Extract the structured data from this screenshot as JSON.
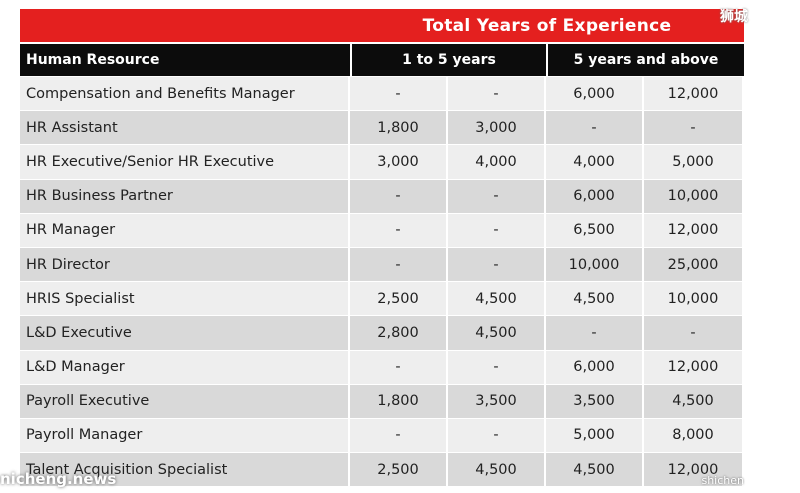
{
  "table": {
    "super_header": "Total Years of Experience",
    "header": {
      "resource": "Human Resource",
      "group1": "1 to 5 years",
      "group2": "5 years and above"
    },
    "rows": [
      {
        "name": "Compensation and Benefits Manager",
        "values": [
          "-",
          "-",
          "6,000",
          "12,000"
        ]
      },
      {
        "name": "HR Assistant",
        "values": [
          "1,800",
          "3,000",
          "-",
          "-"
        ]
      },
      {
        "name": "HR Executive/Senior HR Executive",
        "values": [
          "3,000",
          "4,000",
          "4,000",
          "5,000"
        ]
      },
      {
        "name": "HR Business Partner",
        "values": [
          "-",
          "-",
          "6,000",
          "10,000"
        ]
      },
      {
        "name": "HR Manager",
        "values": [
          "-",
          "-",
          "6,500",
          "12,000"
        ]
      },
      {
        "name": "HR Director",
        "values": [
          "-",
          "-",
          "10,000",
          "25,000"
        ]
      },
      {
        "name": "HRIS Specialist",
        "values": [
          "2,500",
          "4,500",
          "4,500",
          "10,000"
        ]
      },
      {
        "name": "L&D Executive",
        "values": [
          "2,800",
          "4,500",
          "-",
          "-"
        ]
      },
      {
        "name": "L&D Manager",
        "values": [
          "-",
          "-",
          "6,000",
          "12,000"
        ]
      },
      {
        "name": "Payroll Executive",
        "values": [
          "1,800",
          "3,500",
          "3,500",
          "4,500"
        ]
      },
      {
        "name": "Payroll Manager",
        "values": [
          "-",
          "-",
          "5,000",
          "8,000"
        ]
      },
      {
        "name": "Talent Acquisition Specialist",
        "values": [
          "2,500",
          "4,500",
          "4,500",
          "12,000"
        ]
      }
    ]
  },
  "watermarks": {
    "top_right": "狮城",
    "bottom_left": "nicheng.news",
    "bottom_right": "shichen"
  },
  "colors": {
    "accent_red": "#e4201f",
    "header_black": "#0c0c0c",
    "row_light": "#eeeeee",
    "row_dark": "#d9d9d9"
  }
}
